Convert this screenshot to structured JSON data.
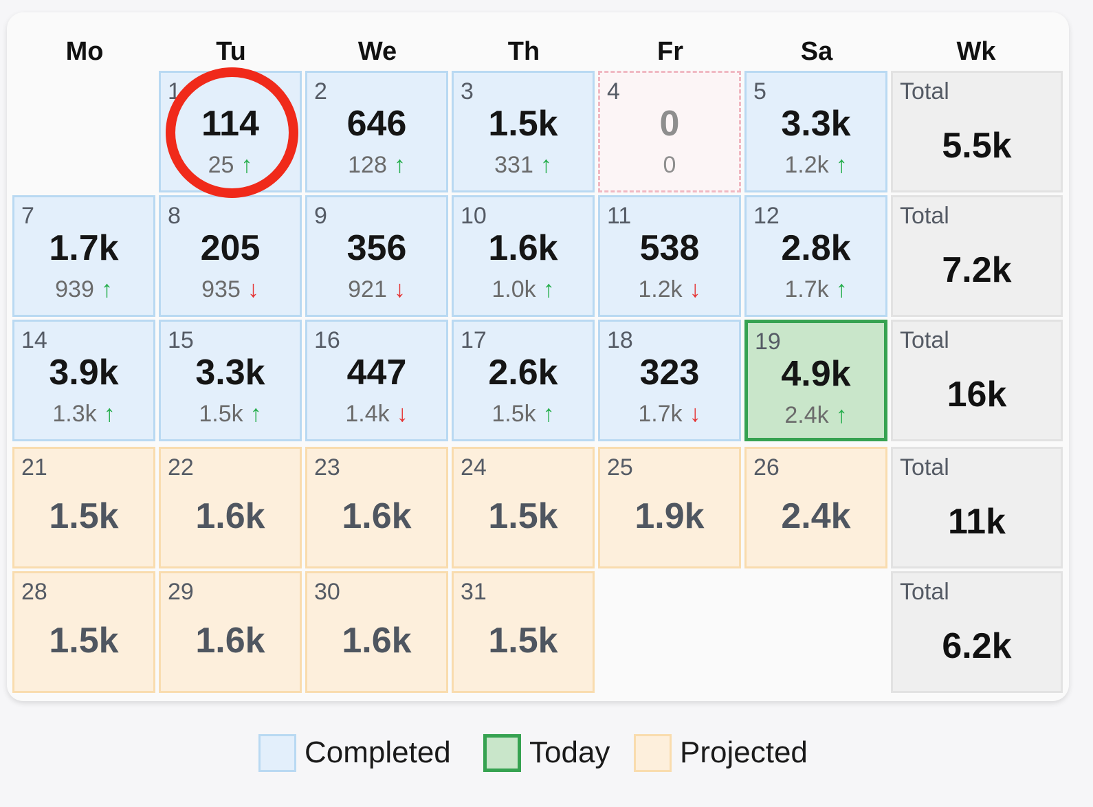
{
  "header": {
    "days": [
      "Mo",
      "Tu",
      "We",
      "Th",
      "Fr",
      "Sa",
      "Wk"
    ]
  },
  "colors": {
    "completed_bg": "#e3effb",
    "completed_border": "#b9d9f2",
    "today_bg": "#c9e6ca",
    "today_border": "#36a251",
    "projected_bg": "#fdefdc",
    "projected_border": "#f9dcae",
    "total_bg": "#efefef",
    "up_arrow": "#27ae4d",
    "down_arrow": "#e53535",
    "highlight_ring": "#f02a1a"
  },
  "weeks": [
    {
      "days": [
        null,
        {
          "day": "1",
          "value": "114",
          "sub": "25",
          "trend": "up",
          "state": "completed"
        },
        {
          "day": "2",
          "value": "646",
          "sub": "128",
          "trend": "up",
          "state": "completed"
        },
        {
          "day": "3",
          "value": "1.5k",
          "sub": "331",
          "trend": "up",
          "state": "completed"
        },
        {
          "day": "4",
          "value": "0",
          "sub": "0",
          "trend": null,
          "state": "zero"
        },
        {
          "day": "5",
          "value": "3.3k",
          "sub": "1.2k",
          "trend": "up",
          "state": "completed"
        }
      ],
      "total": {
        "label": "Total",
        "value": "5.5k"
      }
    },
    {
      "days": [
        {
          "day": "7",
          "value": "1.7k",
          "sub": "939",
          "trend": "up",
          "state": "completed"
        },
        {
          "day": "8",
          "value": "205",
          "sub": "935",
          "trend": "down",
          "state": "completed"
        },
        {
          "day": "9",
          "value": "356",
          "sub": "921",
          "trend": "down",
          "state": "completed"
        },
        {
          "day": "10",
          "value": "1.6k",
          "sub": "1.0k",
          "trend": "up",
          "state": "completed"
        },
        {
          "day": "11",
          "value": "538",
          "sub": "1.2k",
          "trend": "down",
          "state": "completed"
        },
        {
          "day": "12",
          "value": "2.8k",
          "sub": "1.7k",
          "trend": "up",
          "state": "completed"
        }
      ],
      "total": {
        "label": "Total",
        "value": "7.2k"
      }
    },
    {
      "days": [
        {
          "day": "14",
          "value": "3.9k",
          "sub": "1.3k",
          "trend": "up",
          "state": "completed"
        },
        {
          "day": "15",
          "value": "3.3k",
          "sub": "1.5k",
          "trend": "up",
          "state": "completed"
        },
        {
          "day": "16",
          "value": "447",
          "sub": "1.4k",
          "trend": "down",
          "state": "completed"
        },
        {
          "day": "17",
          "value": "2.6k",
          "sub": "1.5k",
          "trend": "up",
          "state": "completed"
        },
        {
          "day": "18",
          "value": "323",
          "sub": "1.7k",
          "trend": "down",
          "state": "completed"
        },
        {
          "day": "19",
          "value": "4.9k",
          "sub": "2.4k",
          "trend": "up",
          "state": "today"
        }
      ],
      "total": {
        "label": "Total",
        "value": "16k"
      }
    },
    {
      "days": [
        {
          "day": "21",
          "value": "1.5k",
          "state": "projected"
        },
        {
          "day": "22",
          "value": "1.6k",
          "state": "projected"
        },
        {
          "day": "23",
          "value": "1.6k",
          "state": "projected"
        },
        {
          "day": "24",
          "value": "1.5k",
          "state": "projected"
        },
        {
          "day": "25",
          "value": "1.9k",
          "state": "projected"
        },
        {
          "day": "26",
          "value": "2.4k",
          "state": "projected"
        }
      ],
      "total": {
        "label": "Total",
        "value": "11k"
      }
    },
    {
      "days": [
        {
          "day": "28",
          "value": "1.5k",
          "state": "projected"
        },
        {
          "day": "29",
          "value": "1.6k",
          "state": "projected"
        },
        {
          "day": "30",
          "value": "1.6k",
          "state": "projected"
        },
        {
          "day": "31",
          "value": "1.5k",
          "state": "projected"
        },
        null,
        null
      ],
      "total": {
        "label": "Total",
        "value": "6.2k"
      }
    }
  ],
  "arrow_icons": {
    "up": "↑",
    "down": "↓"
  },
  "legend": {
    "completed": "Completed",
    "today": "Today",
    "projected": "Projected"
  }
}
